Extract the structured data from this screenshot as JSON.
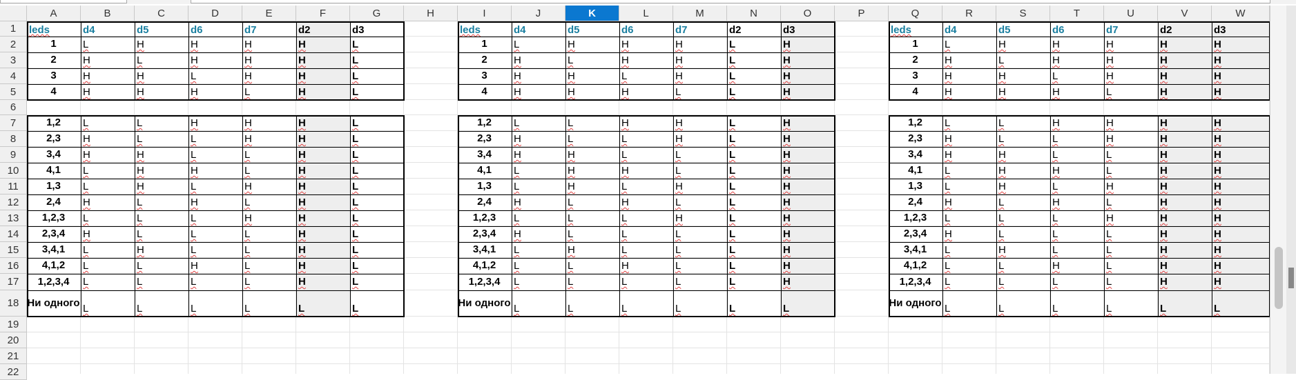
{
  "columns": [
    "A",
    "B",
    "C",
    "D",
    "E",
    "F",
    "G",
    "H",
    "I",
    "J",
    "K",
    "L",
    "M",
    "N",
    "O",
    "P",
    "Q",
    "R",
    "S",
    "T",
    "U",
    "V",
    "W"
  ],
  "selected_column": "K",
  "rows": [
    "1",
    "2",
    "3",
    "4",
    "5",
    "6",
    "7",
    "8",
    "9",
    "10",
    "11",
    "12",
    "13",
    "14",
    "15",
    "16",
    "17",
    "18",
    "19",
    "20",
    "21",
    "22"
  ],
  "tables": [
    {
      "headers": [
        "leds",
        "d4",
        "d5",
        "d6",
        "d7",
        "d2",
        "d3"
      ],
      "labels": [
        "1",
        "2",
        "3",
        "4",
        "",
        "1,2",
        "2,3",
        "3,4",
        "4,1",
        "1,3",
        "2,4",
        "1,2,3",
        "2,3,4",
        "3,4,1",
        "4,1,2",
        "1,2,3,4",
        "Ни одного"
      ],
      "values": [
        [
          "L",
          "H",
          "H",
          "H",
          "H",
          "L"
        ],
        [
          "H",
          "L",
          "H",
          "H",
          "H",
          "L"
        ],
        [
          "H",
          "H",
          "L",
          "H",
          "H",
          "L"
        ],
        [
          "H",
          "H",
          "H",
          "L",
          "H",
          "L"
        ],
        [],
        [
          "L",
          "L",
          "H",
          "H",
          "H",
          "L"
        ],
        [
          "H",
          "L",
          "L",
          "H",
          "H",
          "L"
        ],
        [
          "H",
          "H",
          "L",
          "L",
          "H",
          "L"
        ],
        [
          "L",
          "H",
          "H",
          "L",
          "H",
          "L"
        ],
        [
          "L",
          "H",
          "L",
          "H",
          "H",
          "L"
        ],
        [
          "H",
          "L",
          "H",
          "L",
          "H",
          "L"
        ],
        [
          "L",
          "L",
          "L",
          "H",
          "H",
          "L"
        ],
        [
          "H",
          "L",
          "L",
          "L",
          "H",
          "L"
        ],
        [
          "L",
          "H",
          "L",
          "L",
          "H",
          "L"
        ],
        [
          "L",
          "L",
          "H",
          "L",
          "H",
          "L"
        ],
        [
          "L",
          "L",
          "L",
          "L",
          "H",
          "L"
        ],
        [
          "L",
          "L",
          "L",
          "L",
          "L",
          "L"
        ]
      ]
    },
    {
      "headers": [
        "leds",
        "d4",
        "d5",
        "d6",
        "d7",
        "d2",
        "d3"
      ],
      "labels": [
        "1",
        "2",
        "3",
        "4",
        "",
        "1,2",
        "2,3",
        "3,4",
        "4,1",
        "1,3",
        "2,4",
        "1,2,3",
        "2,3,4",
        "3,4,1",
        "4,1,2",
        "1,2,3,4",
        "Ни одного"
      ],
      "values": [
        [
          "L",
          "H",
          "H",
          "H",
          "L",
          "H"
        ],
        [
          "H",
          "L",
          "H",
          "H",
          "L",
          "H"
        ],
        [
          "H",
          "H",
          "L",
          "H",
          "L",
          "H"
        ],
        [
          "H",
          "H",
          "H",
          "L",
          "L",
          "H"
        ],
        [],
        [
          "L",
          "L",
          "H",
          "H",
          "L",
          "H"
        ],
        [
          "H",
          "L",
          "L",
          "H",
          "L",
          "H"
        ],
        [
          "H",
          "H",
          "L",
          "L",
          "L",
          "H"
        ],
        [
          "L",
          "H",
          "H",
          "L",
          "L",
          "H"
        ],
        [
          "L",
          "H",
          "L",
          "H",
          "L",
          "H"
        ],
        [
          "H",
          "L",
          "H",
          "L",
          "L",
          "H"
        ],
        [
          "L",
          "L",
          "L",
          "H",
          "L",
          "H"
        ],
        [
          "H",
          "L",
          "L",
          "L",
          "L",
          "H"
        ],
        [
          "L",
          "H",
          "L",
          "L",
          "L",
          "H"
        ],
        [
          "L",
          "L",
          "H",
          "L",
          "L",
          "H"
        ],
        [
          "L",
          "L",
          "L",
          "L",
          "L",
          "H"
        ],
        [
          "L",
          "L",
          "L",
          "L",
          "L",
          "L"
        ]
      ]
    },
    {
      "headers": [
        "leds",
        "d4",
        "d5",
        "d6",
        "d7",
        "d2",
        "d3"
      ],
      "labels": [
        "1",
        "2",
        "3",
        "4",
        "",
        "1,2",
        "2,3",
        "3,4",
        "4,1",
        "1,3",
        "2,4",
        "1,2,3",
        "2,3,4",
        "3,4,1",
        "4,1,2",
        "1,2,3,4",
        "Ни одного"
      ],
      "values": [
        [
          "L",
          "H",
          "H",
          "H",
          "H",
          "H"
        ],
        [
          "H",
          "L",
          "H",
          "H",
          "H",
          "H"
        ],
        [
          "H",
          "H",
          "L",
          "H",
          "H",
          "H"
        ],
        [
          "H",
          "H",
          "H",
          "L",
          "H",
          "H"
        ],
        [],
        [
          "L",
          "L",
          "H",
          "H",
          "H",
          "H"
        ],
        [
          "H",
          "L",
          "L",
          "H",
          "H",
          "H"
        ],
        [
          "H",
          "H",
          "L",
          "L",
          "H",
          "H"
        ],
        [
          "L",
          "H",
          "H",
          "L",
          "H",
          "H"
        ],
        [
          "L",
          "H",
          "L",
          "H",
          "H",
          "H"
        ],
        [
          "H",
          "L",
          "H",
          "L",
          "H",
          "H"
        ],
        [
          "L",
          "L",
          "L",
          "H",
          "H",
          "H"
        ],
        [
          "H",
          "L",
          "L",
          "L",
          "H",
          "H"
        ],
        [
          "L",
          "H",
          "L",
          "L",
          "H",
          "H"
        ],
        [
          "L",
          "L",
          "H",
          "L",
          "H",
          "H"
        ],
        [
          "L",
          "L",
          "L",
          "L",
          "H",
          "H"
        ],
        [
          "L",
          "L",
          "L",
          "L",
          "L",
          "L"
        ]
      ]
    }
  ]
}
